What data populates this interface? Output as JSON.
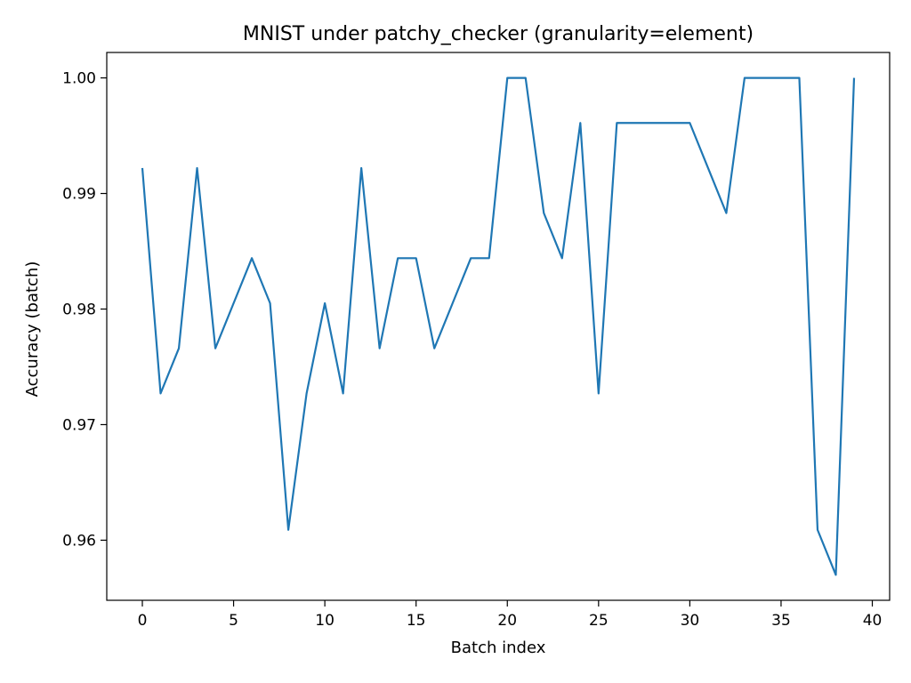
{
  "chart_data": {
    "type": "line",
    "title": "MNIST under patchy_checker (granularity=element)",
    "xlabel": "Batch index",
    "ylabel": "Accuracy (batch)",
    "xlim": [
      -1.95,
      40.95
    ],
    "ylim": [
      0.9548,
      1.0022
    ],
    "xticks": [
      0,
      5,
      10,
      15,
      20,
      25,
      30,
      35,
      40
    ],
    "xtick_labels": [
      "0",
      "5",
      "10",
      "15",
      "20",
      "25",
      "30",
      "35",
      "40"
    ],
    "yticks": [
      0.96,
      0.97,
      0.98,
      0.99,
      1.0
    ],
    "ytick_labels": [
      "0.96",
      "0.97",
      "0.98",
      "0.99",
      "1.00"
    ],
    "grid": false,
    "colors": {
      "series": "#1f77b4"
    },
    "series": [
      {
        "x": [
          0,
          1,
          2,
          3,
          4,
          5,
          6,
          7,
          8,
          9,
          10,
          11,
          12,
          13,
          14,
          15,
          16,
          17,
          18,
          19,
          20,
          21,
          22,
          23,
          24,
          25,
          26,
          27,
          28,
          29,
          30,
          31,
          32,
          33,
          34,
          35,
          36,
          37,
          38,
          39
        ],
        "values": [
          0.9922,
          0.9727,
          0.9766,
          0.9922,
          0.9766,
          0.9805,
          0.9844,
          0.9805,
          0.9609,
          0.9727,
          0.9805,
          0.9727,
          0.9922,
          0.9766,
          0.9844,
          0.9844,
          0.9766,
          0.9805,
          0.9844,
          0.9844,
          1.0,
          1.0,
          0.9883,
          0.9844,
          0.9961,
          0.9727,
          0.9961,
          0.9961,
          0.9961,
          0.9961,
          0.9961,
          0.9922,
          0.9883,
          1.0,
          1.0,
          1.0,
          1.0,
          0.9609,
          0.957,
          1.0
        ]
      }
    ]
  }
}
